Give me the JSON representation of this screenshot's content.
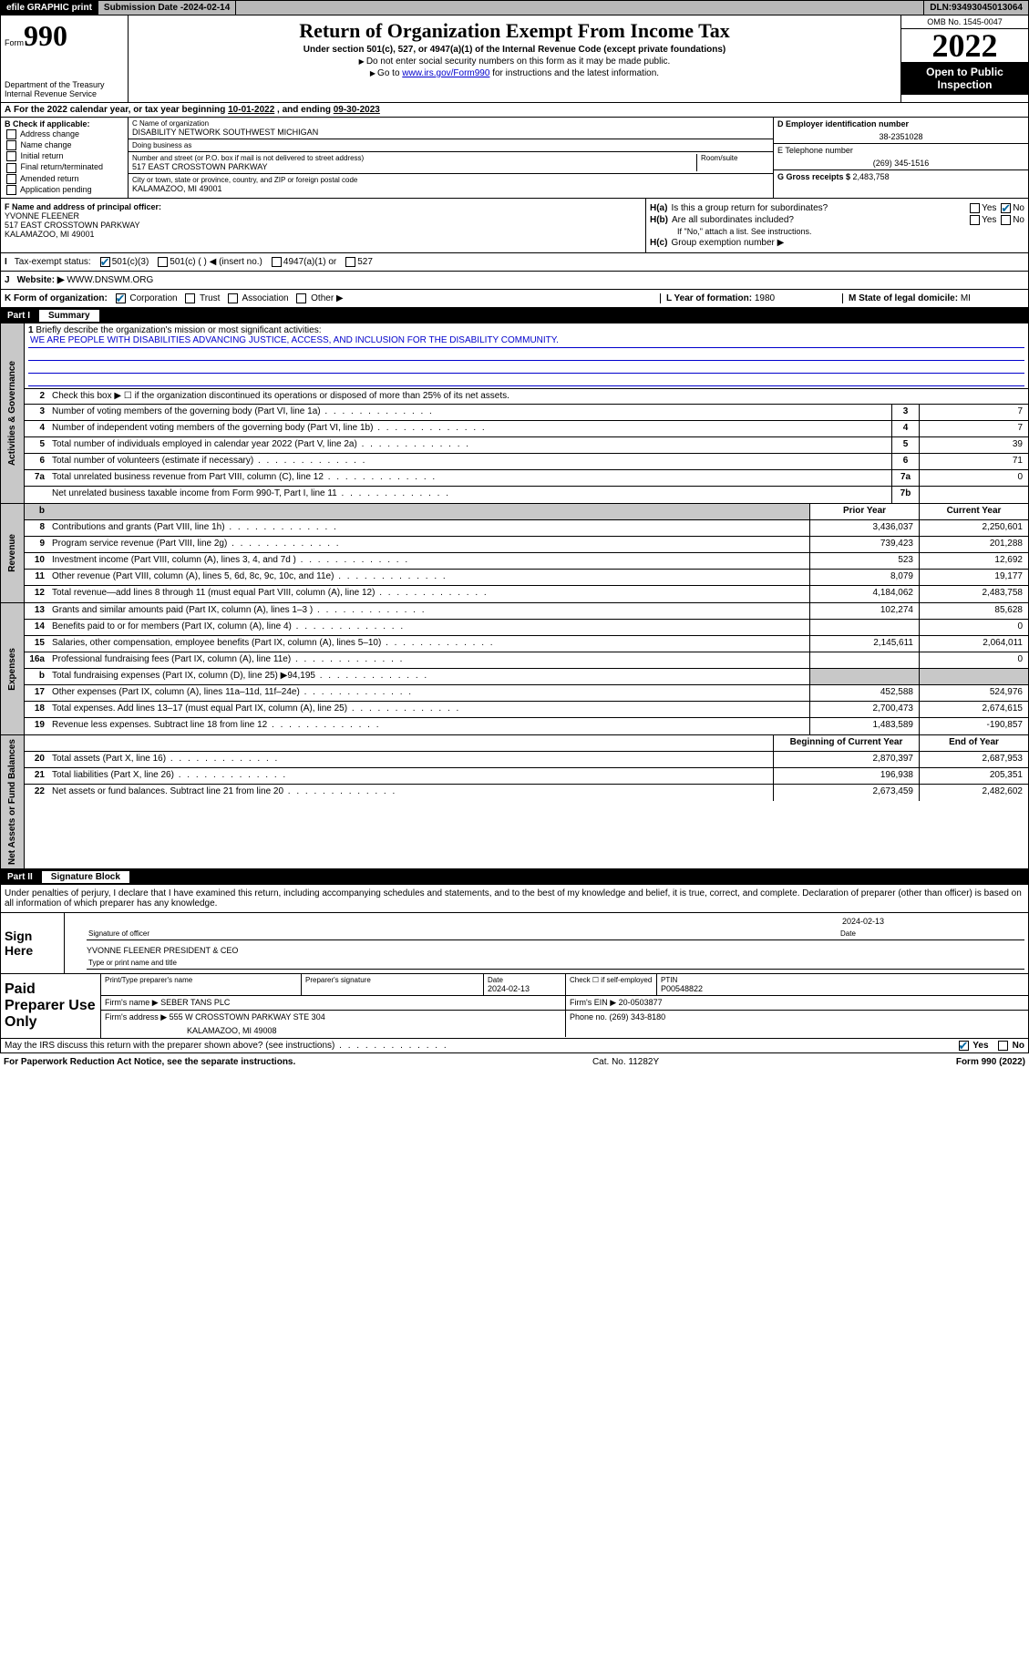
{
  "topbar": {
    "efile": "efile GRAPHIC print",
    "subdate_label": "Submission Date - ",
    "subdate": "2024-02-14",
    "dln_label": "DLN: ",
    "dln": "93493045013064"
  },
  "header": {
    "form_label": "Form",
    "form_num": "990",
    "dept": "Department of the Treasury\nInternal Revenue Service",
    "title": "Return of Organization Exempt From Income Tax",
    "sub": "Under section 501(c), 527, or 4947(a)(1) of the Internal Revenue Code (except private foundations)",
    "note1": "Do not enter social security numbers on this form as it may be made public.",
    "note2_pre": "Go to ",
    "note2_link": "www.irs.gov/Form990",
    "note2_post": " for instructions and the latest information.",
    "omb": "OMB No. 1545-0047",
    "year": "2022",
    "open": "Open to Public Inspection"
  },
  "line_a": {
    "text": "For the 2022 calendar year, or tax year beginning ",
    "begin": "10-01-2022",
    "mid": " , and ending ",
    "end": "09-30-2023"
  },
  "col_b": {
    "label": "B Check if applicable:",
    "items": [
      "Address change",
      "Name change",
      "Initial return",
      "Final return/terminated",
      "Amended return",
      "Application pending"
    ]
  },
  "col_c": {
    "name_label": "C Name of organization",
    "name": "DISABILITY NETWORK SOUTHWEST MICHIGAN",
    "dba_label": "Doing business as",
    "addr_label": "Number and street (or P.O. box if mail is not delivered to street address)",
    "room_label": "Room/suite",
    "addr": "517 EAST CROSSTOWN PARKWAY",
    "city_label": "City or town, state or province, country, and ZIP or foreign postal code",
    "city": "KALAMAZOO, MI  49001"
  },
  "col_d": {
    "ein_label": "D Employer identification number",
    "ein": "38-2351028",
    "phone_label": "E Telephone number",
    "phone": "(269) 345-1516",
    "gross_label": "G Gross receipts $ ",
    "gross": "2,483,758"
  },
  "block_f": {
    "label": "F Name and address of principal officer:",
    "name": "YVONNE FLEENER",
    "addr1": "517 EAST CROSSTOWN PARKWAY",
    "addr2": "KALAMAZOO, MI  49001",
    "ha": "Is this a group return for subordinates?",
    "hb": "Are all subordinates included?",
    "hb_note": "If \"No,\" attach a list. See instructions.",
    "hc": "Group exemption number ▶"
  },
  "status": {
    "label_i": "I",
    "label": "Tax-exempt status:",
    "opts": [
      "501(c)(3)",
      "501(c) (  ) ◀ (insert no.)",
      "4947(a)(1) or",
      "527"
    ]
  },
  "website": {
    "label_j": "J",
    "label": "Website: ▶",
    "value": "WWW.DNSWM.ORG"
  },
  "korg": {
    "label": "K Form of organization:",
    "opts": [
      "Corporation",
      "Trust",
      "Association",
      "Other ▶"
    ],
    "l_label": "L Year of formation: ",
    "l_val": "1980",
    "m_label": "M State of legal domicile: ",
    "m_val": "MI"
  },
  "part1": {
    "num": "Part I",
    "title": "Summary"
  },
  "summary": {
    "mission_label": "Briefly describe the organization's mission or most significant activities:",
    "mission": "WE ARE PEOPLE WITH DISABILITIES ADVANCING JUSTICE, ACCESS, AND INCLUSION FOR THE DISABILITY COMMUNITY.",
    "line2": "Check this box ▶ ☐  if the organization discontinued its operations or disposed of more than 25% of its net assets.",
    "governance": [
      {
        "n": "3",
        "t": "Number of voting members of the governing body (Part VI, line 1a)",
        "b": "3",
        "v": "7"
      },
      {
        "n": "4",
        "t": "Number of independent voting members of the governing body (Part VI, line 1b)",
        "b": "4",
        "v": "7"
      },
      {
        "n": "5",
        "t": "Total number of individuals employed in calendar year 2022 (Part V, line 2a)",
        "b": "5",
        "v": "39"
      },
      {
        "n": "6",
        "t": "Total number of volunteers (estimate if necessary)",
        "b": "6",
        "v": "71"
      },
      {
        "n": "7a",
        "t": "Total unrelated business revenue from Part VIII, column (C), line 12",
        "b": "7a",
        "v": "0"
      },
      {
        "n": "",
        "t": "Net unrelated business taxable income from Form 990-T, Part I, line 11",
        "b": "7b",
        "v": ""
      }
    ],
    "col_hdr_prior": "Prior Year",
    "col_hdr_current": "Current Year",
    "revenue": [
      {
        "n": "8",
        "t": "Contributions and grants (Part VIII, line 1h)",
        "p": "3,436,037",
        "c": "2,250,601"
      },
      {
        "n": "9",
        "t": "Program service revenue (Part VIII, line 2g)",
        "p": "739,423",
        "c": "201,288"
      },
      {
        "n": "10",
        "t": "Investment income (Part VIII, column (A), lines 3, 4, and 7d )",
        "p": "523",
        "c": "12,692"
      },
      {
        "n": "11",
        "t": "Other revenue (Part VIII, column (A), lines 5, 6d, 8c, 9c, 10c, and 11e)",
        "p": "8,079",
        "c": "19,177"
      },
      {
        "n": "12",
        "t": "Total revenue—add lines 8 through 11 (must equal Part VIII, column (A), line 12)",
        "p": "4,184,062",
        "c": "2,483,758"
      }
    ],
    "expenses": [
      {
        "n": "13",
        "t": "Grants and similar amounts paid (Part IX, column (A), lines 1–3 )",
        "p": "102,274",
        "c": "85,628"
      },
      {
        "n": "14",
        "t": "Benefits paid to or for members (Part IX, column (A), line 4)",
        "p": "",
        "c": "0"
      },
      {
        "n": "15",
        "t": "Salaries, other compensation, employee benefits (Part IX, column (A), lines 5–10)",
        "p": "2,145,611",
        "c": "2,064,011"
      },
      {
        "n": "16a",
        "t": "Professional fundraising fees (Part IX, column (A), line 11e)",
        "p": "",
        "c": "0"
      },
      {
        "n": "b",
        "t": "Total fundraising expenses (Part IX, column (D), line 25) ▶94,195",
        "p": "gray",
        "c": "gray"
      },
      {
        "n": "17",
        "t": "Other expenses (Part IX, column (A), lines 11a–11d, 11f–24e)",
        "p": "452,588",
        "c": "524,976"
      },
      {
        "n": "18",
        "t": "Total expenses. Add lines 13–17 (must equal Part IX, column (A), line 25)",
        "p": "2,700,473",
        "c": "2,674,615"
      },
      {
        "n": "19",
        "t": "Revenue less expenses. Subtract line 18 from line 12",
        "p": "1,483,589",
        "c": "-190,857"
      }
    ],
    "col_hdr_begin": "Beginning of Current Year",
    "col_hdr_end": "End of Year",
    "netassets": [
      {
        "n": "20",
        "t": "Total assets (Part X, line 16)",
        "p": "2,870,397",
        "c": "2,687,953"
      },
      {
        "n": "21",
        "t": "Total liabilities (Part X, line 26)",
        "p": "196,938",
        "c": "205,351"
      },
      {
        "n": "22",
        "t": "Net assets or fund balances. Subtract line 21 from line 20",
        "p": "2,673,459",
        "c": "2,482,602"
      }
    ]
  },
  "vtabs": {
    "gov": "Activities & Governance",
    "rev": "Revenue",
    "exp": "Expenses",
    "net": "Net Assets or Fund Balances"
  },
  "part2": {
    "num": "Part II",
    "title": "Signature Block"
  },
  "sig": {
    "decl": "Under penalties of perjury, I declare that I have examined this return, including accompanying schedules and statements, and to the best of my knowledge and belief, it is true, correct, and complete. Declaration of preparer (other than officer) is based on all information of which preparer has any knowledge.",
    "sign_here": "Sign Here",
    "sig_officer": "Signature of officer",
    "date": "Date",
    "date_val": "2024-02-13",
    "name": "YVONNE FLEENER  PRESIDENT & CEO",
    "name_label": "Type or print name and title"
  },
  "paid": {
    "label": "Paid Preparer Use Only",
    "h1": "Print/Type preparer's name",
    "h2": "Preparer's signature",
    "h3": "Date",
    "h3v": "2024-02-13",
    "h4": "Check ☐ if self-employed",
    "h5": "PTIN",
    "h5v": "P00548822",
    "firm_label": "Firm's name    ▶ ",
    "firm": "SEBER TANS PLC",
    "ein_label": "Firm's EIN ▶ ",
    "ein": "20-0503877",
    "addr_label": "Firm's address ▶ ",
    "addr1": "555 W CROSSTOWN PARKWAY STE 304",
    "addr2": "KALAMAZOO, MI  49008",
    "phone_label": "Phone no. ",
    "phone": "(269) 343-8180"
  },
  "footer": {
    "q": "May the IRS discuss this return with the preparer shown above? (see instructions)",
    "yes": "Yes",
    "no": "No"
  },
  "bottom": {
    "left": "For Paperwork Reduction Act Notice, see the separate instructions.",
    "mid": "Cat. No. 11282Y",
    "right": "Form 990 (2022)"
  }
}
